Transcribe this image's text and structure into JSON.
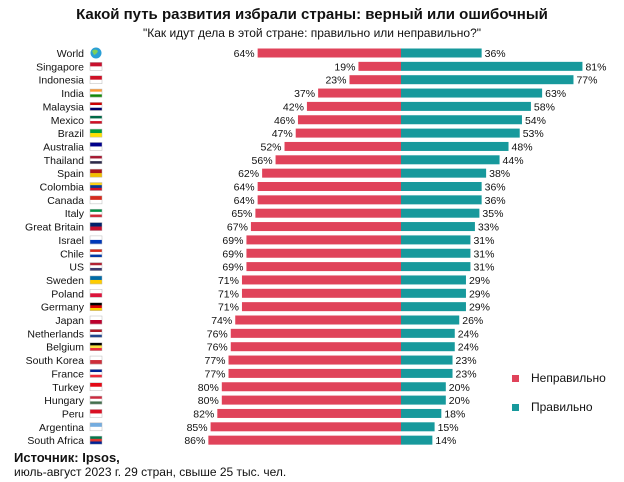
{
  "chart_data": {
    "type": "bar",
    "title": "Какой путь развития избрали страны: верный или ошибочный",
    "subtitle": "\"Как идут дела в этой стране: правильно или неправильно?\"",
    "categories": [
      "World",
      "Singapore",
      "Indonesia",
      "India",
      "Malaysia",
      "Mexico",
      "Brazil",
      "Australia",
      "Thailand",
      "Spain",
      "Colombia",
      "Canada",
      "Italy",
      "Great Britain",
      "Israel",
      "Chile",
      "US",
      "Sweden",
      "Poland",
      "Germany",
      "Japan",
      "Netherlands",
      "Belgium",
      "South Korea",
      "France",
      "Turkey",
      "Hungary",
      "Peru",
      "Argentina",
      "South Africa"
    ],
    "series": [
      {
        "name": "Неправильно",
        "color": "#e0435a",
        "values": [
          64,
          19,
          23,
          37,
          42,
          46,
          47,
          52,
          56,
          62,
          64,
          64,
          65,
          67,
          69,
          69,
          69,
          71,
          71,
          71,
          74,
          76,
          76,
          77,
          77,
          80,
          80,
          82,
          85,
          86
        ]
      },
      {
        "name": "Правильно",
        "color": "#17999c",
        "values": [
          36,
          81,
          77,
          63,
          58,
          54,
          53,
          48,
          44,
          38,
          36,
          36,
          35,
          33,
          31,
          31,
          31,
          29,
          29,
          29,
          26,
          24,
          24,
          23,
          23,
          20,
          20,
          18,
          15,
          14
        ]
      }
    ],
    "value_suffix": "%",
    "layout": "diverging horizontal bars",
    "legend_placement": "right",
    "grid": false
  },
  "source": {
    "label": "Источник: Ipsos,",
    "note": "июль-август 2023 г. 29 стран, свыше  25 тыс. чел."
  },
  "icons": {
    "world": "globe-icon",
    "countries": "country-flag-icon"
  }
}
